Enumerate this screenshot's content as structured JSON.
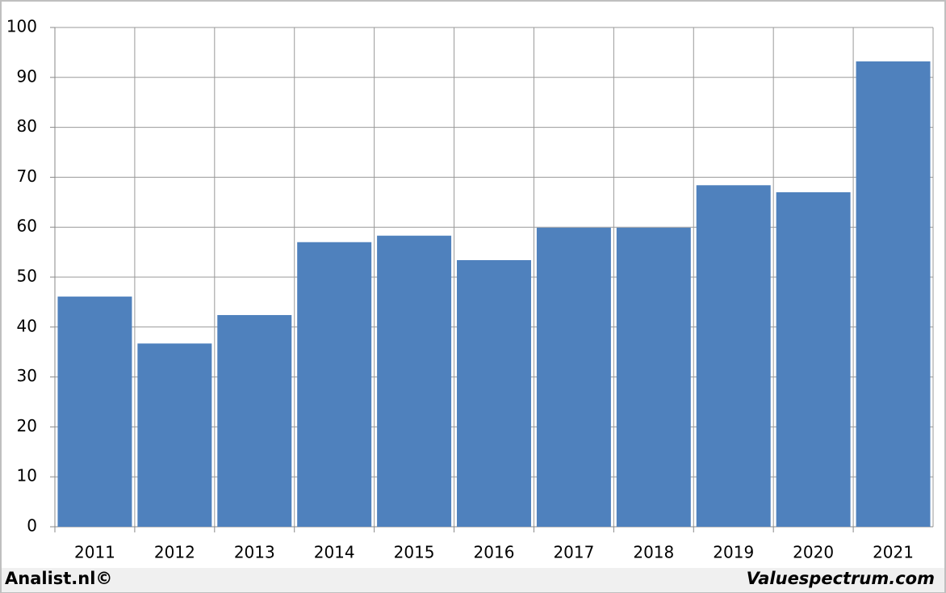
{
  "chart_data": {
    "type": "bar",
    "categories": [
      "2011",
      "2012",
      "2013",
      "2014",
      "2015",
      "2016",
      "2017",
      "2018",
      "2019",
      "2020",
      "2021"
    ],
    "values": [
      46.1,
      36.7,
      42.4,
      57.0,
      58.3,
      53.4,
      59.9,
      59.9,
      68.4,
      67.0,
      93.2
    ],
    "color": "#4f81bd",
    "ylim": [
      0,
      100
    ],
    "yticks": [
      0,
      10,
      20,
      30,
      40,
      50,
      60,
      70,
      80,
      90,
      100
    ],
    "grid": true
  },
  "footer": {
    "left": "Analist.nl©",
    "right": "Valuespectrum.com"
  }
}
